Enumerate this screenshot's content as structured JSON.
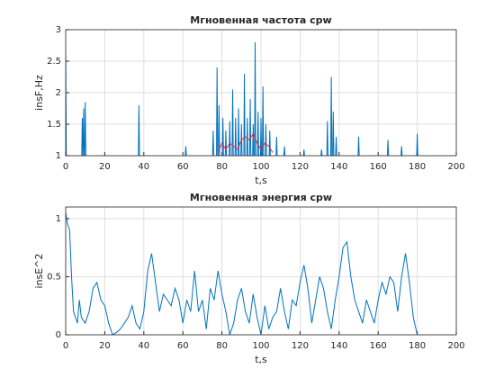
{
  "chart_data": [
    {
      "type": "line",
      "title": "Мгновенная частота cpw",
      "xlabel": "t,s",
      "ylabel": "insF,Hz",
      "xlim": [
        0,
        200
      ],
      "ylim": [
        1,
        3
      ],
      "xticks": [
        0,
        20,
        40,
        60,
        80,
        100,
        120,
        140,
        160,
        180,
        200
      ],
      "yticks": [
        1,
        1.5,
        2,
        2.5,
        3
      ],
      "grid": true,
      "x": [
        0,
        0.3,
        0.4,
        8.2,
        8.5,
        8.8,
        8.85,
        8.9,
        9.2,
        9.5,
        9.55,
        9.7,
        10,
        10.3,
        10.35,
        37.2,
        37.5,
        37.8,
        37.85,
        61.2,
        61.5,
        61.8,
        61.85,
        75.2,
        75.5,
        75.8,
        75.85,
        77.2,
        77.5,
        77.8,
        77.85,
        78.2,
        78.5,
        78.8,
        78.85,
        80.2,
        80.5,
        80.8,
        80.85,
        81.7,
        82,
        82.3,
        82.35,
        83.7,
        84,
        84.3,
        84.35,
        85.2,
        85.5,
        85.8,
        85.85,
        86.7,
        87,
        87.3,
        87.35,
        88.2,
        88.5,
        88.8,
        88.85,
        89.7,
        90,
        90.3,
        90.35,
        91.2,
        91.5,
        91.8,
        91.85,
        92.7,
        93,
        93.3,
        93.35,
        94.2,
        94.5,
        94.8,
        94.85,
        95.7,
        96,
        96.3,
        96.35,
        96.7,
        97,
        97.3,
        97.35,
        98.2,
        98.5,
        98.8,
        98.85,
        99.7,
        100,
        100.3,
        100.35,
        100.7,
        101,
        101.3,
        101.35,
        102.2,
        102.5,
        102.8,
        102.85,
        104.2,
        104.5,
        104.8,
        104.85,
        107.7,
        108,
        108.3,
        108.35,
        111.7,
        112,
        112.3,
        112.35,
        121.7,
        122,
        122.3,
        122.35,
        130.7,
        131,
        131.3,
        131.35,
        133.7,
        134,
        134.3,
        134.35,
        135.7,
        136,
        136.3,
        136.35,
        136.7,
        137,
        137.3,
        137.35,
        138.2,
        138.5,
        138.8,
        138.85,
        149.7,
        150,
        150.3,
        150.35,
        164.7,
        165,
        165.3,
        165.35,
        171.7,
        172,
        172.3,
        172.35,
        179.7,
        180,
        180.3
      ],
      "series": [
        {
          "color": "#0072bd",
          "values": [
            2.6,
            1,
            null,
            1,
            1.6,
            1,
            null,
            1,
            1.75,
            1,
            null,
            1,
            1.85,
            1,
            null,
            1,
            1.8,
            1,
            null,
            1,
            1.15,
            1,
            null,
            1,
            1.4,
            1,
            null,
            1,
            2.4,
            1,
            null,
            1,
            1.8,
            1,
            null,
            1,
            1.6,
            1,
            null,
            1,
            1.4,
            1,
            null,
            1,
            1.55,
            1,
            null,
            1,
            2.05,
            1,
            null,
            1,
            1.6,
            1,
            null,
            1,
            1.75,
            1,
            null,
            1,
            1.5,
            1,
            null,
            1,
            2.3,
            1,
            null,
            1,
            1.6,
            1,
            null,
            1,
            1.9,
            1,
            null,
            1,
            1.5,
            1,
            null,
            1,
            2.8,
            1,
            null,
            1,
            1.7,
            1,
            null,
            1,
            1.6,
            1,
            null,
            1,
            2.1,
            1,
            null,
            1,
            1.5,
            1,
            null,
            1,
            1.4,
            1,
            null,
            1,
            1.3,
            1,
            null,
            1,
            1.15,
            1,
            null,
            1,
            1.1,
            1,
            null,
            1,
            1.1,
            1,
            null,
            1,
            1.55,
            1,
            null,
            1,
            2.25,
            1,
            null,
            1,
            1.7,
            1,
            null,
            1,
            1.3,
            1,
            null,
            1,
            1.3,
            1,
            null,
            1,
            1.25,
            1,
            null,
            1,
            1.15,
            1,
            null,
            1,
            1.35,
            1
          ]
        },
        {
          "color": "#e8254a",
          "x": [
            78,
            80,
            82,
            84,
            86,
            88,
            90,
            92,
            94,
            96,
            98,
            100,
            102,
            104,
            106
          ],
          "values": [
            1.05,
            1.2,
            1.1,
            1.2,
            1.15,
            1.1,
            1.25,
            1.3,
            1.25,
            1.35,
            1.2,
            1.1,
            1.2,
            1.15,
            1.05
          ]
        }
      ]
    },
    {
      "type": "line",
      "title": "Мгновенная энергия cpw",
      "xlabel": "t,s",
      "ylabel": "insE^2",
      "xlim": [
        0,
        200
      ],
      "ylim": [
        0,
        1.1
      ],
      "xticks": [
        0,
        20,
        40,
        60,
        80,
        100,
        120,
        140,
        160,
        180,
        200
      ],
      "yticks": [
        0,
        0.5,
        1
      ],
      "grid": true,
      "x": [
        0,
        1,
        2,
        3,
        4,
        5,
        6,
        7,
        8,
        10,
        12,
        14,
        16,
        18,
        20,
        22,
        24,
        26,
        28,
        30,
        32,
        34,
        36,
        38,
        40,
        42,
        44,
        46,
        48,
        50,
        52,
        54,
        56,
        58,
        60,
        62,
        64,
        66,
        68,
        70,
        72,
        74,
        76,
        78,
        80,
        82,
        84,
        86,
        88,
        90,
        92,
        94,
        96,
        98,
        100,
        102,
        104,
        106,
        108,
        110,
        112,
        114,
        116,
        118,
        120,
        122,
        124,
        126,
        128,
        130,
        132,
        134,
        136,
        138,
        140,
        142,
        144,
        146,
        148,
        150,
        152,
        154,
        156,
        158,
        160,
        162,
        164,
        166,
        168,
        170,
        172,
        174,
        176,
        178,
        180
      ],
      "series": [
        {
          "color": "#0072bd",
          "values": [
            1.05,
            0.95,
            0.9,
            0.5,
            0.2,
            0.15,
            0.1,
            0.3,
            0.15,
            0.1,
            0.2,
            0.4,
            0.45,
            0.3,
            0.25,
            0.1,
            0.0,
            0.02,
            0.05,
            0.1,
            0.15,
            0.25,
            0.1,
            0.05,
            0.2,
            0.55,
            0.7,
            0.45,
            0.2,
            0.35,
            0.3,
            0.25,
            0.4,
            0.3,
            0.1,
            0.3,
            0.2,
            0.55,
            0.2,
            0.3,
            0.05,
            0.4,
            0.3,
            0.55,
            0.35,
            0.2,
            0.0,
            0.1,
            0.3,
            0.4,
            0.2,
            0.1,
            0.35,
            0.15,
            0.0,
            0.25,
            0.05,
            0.15,
            0.2,
            0.4,
            0.2,
            0.05,
            0.3,
            0.25,
            0.45,
            0.6,
            0.4,
            0.1,
            0.3,
            0.5,
            0.4,
            0.2,
            0.05,
            0.3,
            0.5,
            0.75,
            0.8,
            0.5,
            0.3,
            0.2,
            0.1,
            0.3,
            0.2,
            0.1,
            0.3,
            0.45,
            0.35,
            0.5,
            0.45,
            0.2,
            0.5,
            0.7,
            0.45,
            0.15,
            0.0
          ]
        }
      ]
    }
  ]
}
